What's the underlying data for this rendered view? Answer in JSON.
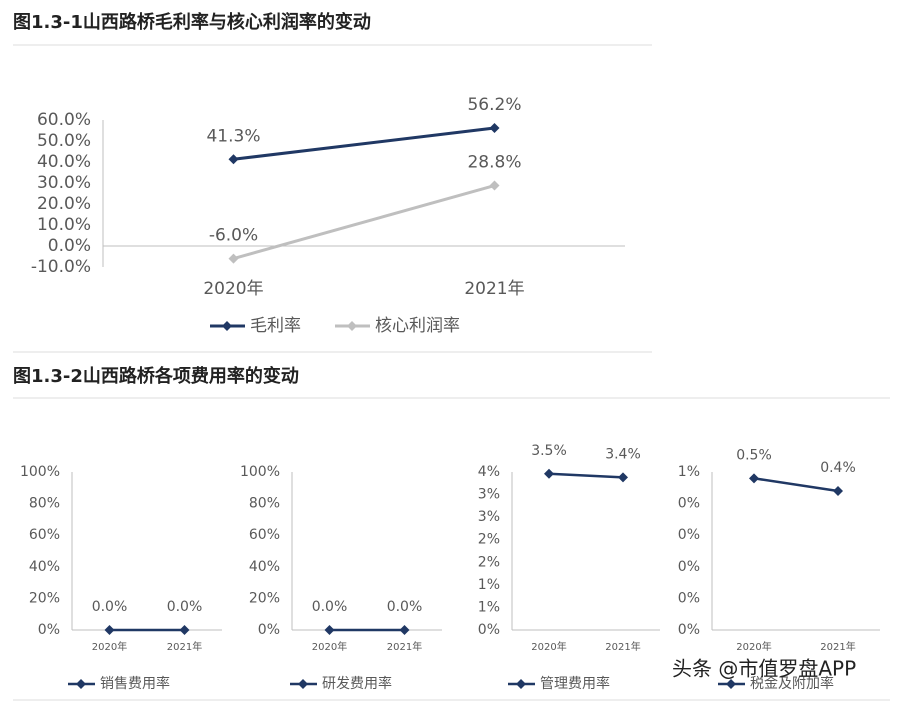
{
  "group_title": "图1.3-2山西路桥各项费用率的变动",
  "watermark": "头条 @市值罗盘APP",
  "chart_data": [
    {
      "type": "line",
      "title": "图1.3-1山西路桥毛利率与核心利润率的变动",
      "categories": [
        "2020年",
        "2021年"
      ],
      "series": [
        {
          "name": "毛利率",
          "color": "#203864",
          "values": [
            41.3,
            56.2
          ],
          "value_labels": [
            "41.3%",
            "56.2%"
          ]
        },
        {
          "name": "核心利润率",
          "color": "#bfbfbf",
          "values": [
            -6.0,
            28.8
          ],
          "value_labels": [
            "-6.0%",
            "28.8%"
          ]
        }
      ],
      "ylim": [
        -10,
        60
      ],
      "yticks": [
        {
          "value": -10,
          "label": "-10.0%"
        },
        {
          "value": 0,
          "label": "0.0%"
        },
        {
          "value": 10,
          "label": "10.0%"
        },
        {
          "value": 20,
          "label": "20.0%"
        },
        {
          "value": 30,
          "label": "30.0%"
        },
        {
          "value": 40,
          "label": "40.0%"
        },
        {
          "value": 50,
          "label": "50.0%"
        },
        {
          "value": 60,
          "label": "60.0%"
        }
      ]
    },
    {
      "type": "line",
      "categories": [
        "2020年",
        "2021年"
      ],
      "series": [
        {
          "name": "销售费用率",
          "color": "#203864",
          "values": [
            0,
            0
          ],
          "value_labels": [
            "0.0%",
            "0.0%"
          ]
        }
      ],
      "ylim": [
        0,
        100
      ],
      "yticks": [
        {
          "value": 0,
          "label": "0%"
        },
        {
          "value": 20,
          "label": "20%"
        },
        {
          "value": 40,
          "label": "40%"
        },
        {
          "value": 60,
          "label": "60%"
        },
        {
          "value": 80,
          "label": "80%"
        },
        {
          "value": 100,
          "label": "100%"
        }
      ]
    },
    {
      "type": "line",
      "categories": [
        "2020年",
        "2021年"
      ],
      "series": [
        {
          "name": "研发费用率",
          "color": "#203864",
          "values": [
            0,
            0
          ],
          "value_labels": [
            "0.0%",
            "0.0%"
          ]
        }
      ],
      "ylim": [
        0,
        100
      ],
      "yticks": [
        {
          "value": 0,
          "label": "0%"
        },
        {
          "value": 20,
          "label": "20%"
        },
        {
          "value": 40,
          "label": "40%"
        },
        {
          "value": 60,
          "label": "60%"
        },
        {
          "value": 80,
          "label": "80%"
        },
        {
          "value": 100,
          "label": "100%"
        }
      ]
    },
    {
      "type": "line",
      "categories": [
        "2020年",
        "2021年"
      ],
      "series": [
        {
          "name": "管理费用率",
          "color": "#203864",
          "values": [
            3.46,
            3.38
          ],
          "value_labels": [
            "3.5%",
            "3.4%"
          ]
        }
      ],
      "ylim": [
        0,
        3.5
      ],
      "yticks": [
        {
          "value": 0,
          "label": "0%"
        },
        {
          "value": 0.5,
          "label": "1%"
        },
        {
          "value": 1,
          "label": "1%"
        },
        {
          "value": 1.5,
          "label": "2%"
        },
        {
          "value": 2,
          "label": "2%"
        },
        {
          "value": 2.5,
          "label": "3%"
        },
        {
          "value": 3,
          "label": "3%"
        },
        {
          "value": 3.5,
          "label": "4%"
        }
      ]
    },
    {
      "type": "line",
      "categories": [
        "2020年",
        "2021年"
      ],
      "series": [
        {
          "name": "税金及附加率",
          "color": "#203864",
          "values": [
            0.48,
            0.44
          ],
          "value_labels": [
            "0.5%",
            "0.4%"
          ]
        }
      ],
      "ylim": [
        0,
        0.5
      ],
      "yticks": [
        {
          "value": 0,
          "label": "0%"
        },
        {
          "value": 0.1,
          "label": "0%"
        },
        {
          "value": 0.2,
          "label": "0%"
        },
        {
          "value": 0.3,
          "label": "0%"
        },
        {
          "value": 0.4,
          "label": "0%"
        },
        {
          "value": 0.5,
          "label": "1%"
        }
      ]
    }
  ]
}
